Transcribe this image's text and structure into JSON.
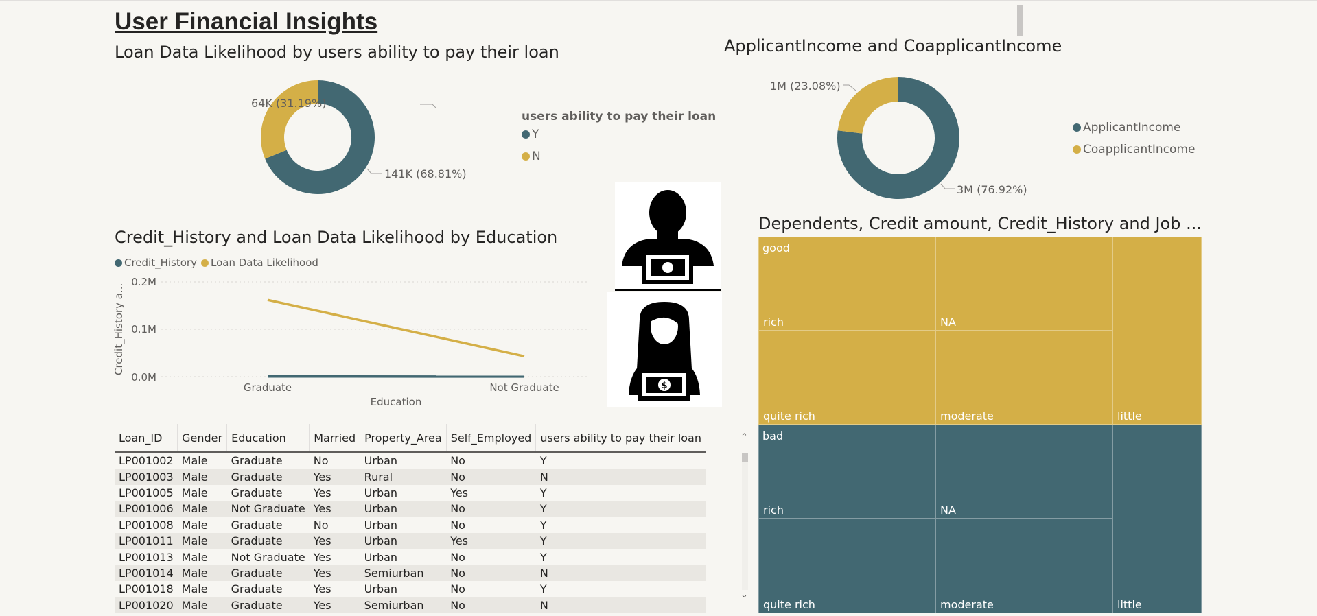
{
  "title": "User Financial Insights",
  "colors": {
    "teal": "#426872",
    "gold": "#d4af47",
    "background": "#f7f6f2"
  },
  "donut1": {
    "title": "Loan Data Likelihood by users ability to pay their loan",
    "legend_title": "users ability to pay their loan",
    "legend": [
      "Y",
      "N"
    ],
    "slices": [
      {
        "name": "Y",
        "label": "141K (68.81%)",
        "share": 68.81,
        "color": "#426872"
      },
      {
        "name": "N",
        "label": "64K (31.19%)",
        "share": 31.19,
        "color": "#d4af47"
      }
    ]
  },
  "donut2": {
    "title": "ApplicantIncome and CoapplicantIncome",
    "legend": [
      "ApplicantIncome",
      "CoapplicantIncome"
    ],
    "slices": [
      {
        "name": "ApplicantIncome",
        "label": "3M (76.92%)",
        "share": 76.92,
        "color": "#426872"
      },
      {
        "name": "CoapplicantIncome",
        "label": "1M (23.08%)",
        "share": 23.08,
        "color": "#d4af47"
      }
    ]
  },
  "line_chart": {
    "title": "Credit_History and Loan Data Likelihood by Education",
    "legend": [
      "Credit_History",
      "Loan Data Likelihood"
    ],
    "ylabel": "Credit_History a...",
    "xlabel": "Education",
    "yticks": [
      "0.2M",
      "0.1M",
      "0.0M"
    ],
    "categories": [
      "Graduate",
      "Not Graduate"
    ]
  },
  "chart_data": {
    "type": "line",
    "categories": [
      "Graduate",
      "Not Graduate"
    ],
    "series": [
      {
        "name": "Credit_History",
        "values": [
          0.0004,
          0.0001
        ],
        "color": "#426872"
      },
      {
        "name": "Loan Data Likelihood",
        "values": [
          0.162,
          0.043
        ],
        "color": "#d4af47"
      }
    ],
    "ylim": [
      0,
      0.2
    ],
    "xlabel": "Education",
    "ylabel": "Credit_History a...",
    "title": "Credit_History and Loan Data Likelihood by Education",
    "grid": true,
    "legend_position": "top-left"
  },
  "table": {
    "columns": [
      "Loan_ID",
      "Gender",
      "Education",
      "Married",
      "Property_Area",
      "Self_Employed",
      "users ability to pay their loan"
    ],
    "rows": [
      [
        "LP001002",
        "Male",
        "Graduate",
        "No",
        "Urban",
        "No",
        "Y"
      ],
      [
        "LP001003",
        "Male",
        "Graduate",
        "Yes",
        "Rural",
        "No",
        "N"
      ],
      [
        "LP001005",
        "Male",
        "Graduate",
        "Yes",
        "Urban",
        "Yes",
        "Y"
      ],
      [
        "LP001006",
        "Male",
        "Not Graduate",
        "Yes",
        "Urban",
        "No",
        "Y"
      ],
      [
        "LP001008",
        "Male",
        "Graduate",
        "No",
        "Urban",
        "No",
        "Y"
      ],
      [
        "LP001011",
        "Male",
        "Graduate",
        "Yes",
        "Urban",
        "Yes",
        "Y"
      ],
      [
        "LP001013",
        "Male",
        "Not Graduate",
        "Yes",
        "Urban",
        "No",
        "Y"
      ],
      [
        "LP001014",
        "Male",
        "Graduate",
        "Yes",
        "Semiurban",
        "No",
        "N"
      ],
      [
        "LP001018",
        "Male",
        "Graduate",
        "Yes",
        "Urban",
        "No",
        "Y"
      ],
      [
        "LP001020",
        "Male",
        "Graduate",
        "Yes",
        "Semiurban",
        "No",
        "N"
      ]
    ]
  },
  "treemap": {
    "title": "Dependents, Credit amount, Credit_History and Job ...",
    "groups": [
      {
        "name": "good",
        "color": "#d4af47",
        "cells": [
          "rich",
          "NA",
          "quite rich",
          "moderate",
          "little"
        ]
      },
      {
        "name": "bad",
        "color": "#426872",
        "cells": [
          "rich",
          "NA",
          "quite rich",
          "moderate",
          "little"
        ]
      }
    ]
  },
  "images": {
    "man": "man-money-icon",
    "woman": "woman-money-icon"
  }
}
